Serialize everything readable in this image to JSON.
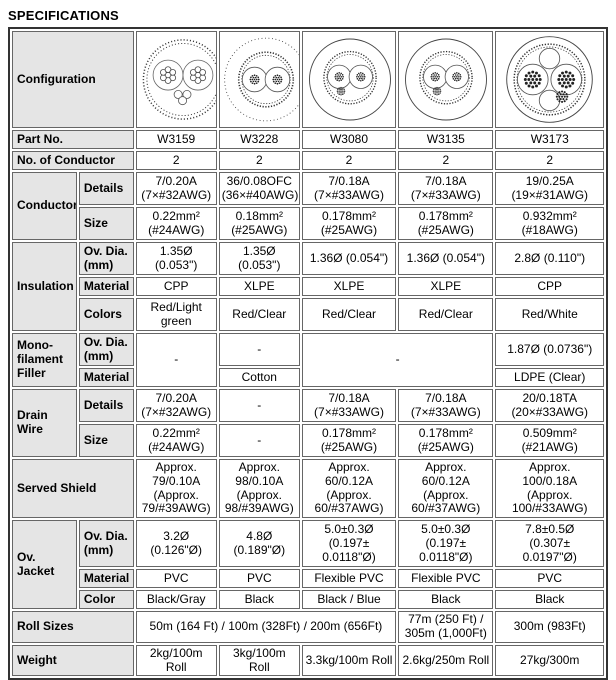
{
  "title": "SPECIFICATIONS",
  "parts": [
    "W3159",
    "W3228",
    "W3080",
    "W3135",
    "W3173"
  ],
  "labels": {
    "configuration": "Configuration",
    "part_no": "Part No.",
    "no_of_conductor": "No. of Conductor",
    "conductor": "Conductor",
    "insulation": "Insulation",
    "mono_filament_filler": "Mono-\nfilament\nFiller",
    "drain_wire": "Drain Wire",
    "served_shield": "Served Shield",
    "ov_jacket": "Ov. Jacket",
    "roll_sizes": "Roll Sizes",
    "weight": "Weight",
    "details": "Details",
    "size": "Size",
    "ov_dia_mm": "Ov. Dia.\n(mm)",
    "material": "Material",
    "colors": "Colors",
    "color": "Color"
  },
  "no_of_conductor": [
    "2",
    "2",
    "2",
    "2",
    "2"
  ],
  "conductor": {
    "details": [
      "7/0.20A\n(7×#32AWG)",
      "36/0.08OFC\n(36×#40AWG)",
      "7/0.18A\n(7×#33AWG)",
      "7/0.18A\n(7×#33AWG)",
      "19/0.25A\n(19×#31AWG)"
    ],
    "size": [
      "0.22mm²\n(#24AWG)",
      "0.18mm²\n(#25AWG)",
      "0.178mm²\n(#25AWG)",
      "0.178mm²\n(#25AWG)",
      "0.932mm²\n(#18AWG)"
    ]
  },
  "insulation": {
    "ov_dia": [
      "1.35Ø (0.053\")",
      "1.35Ø (0.053\")",
      "1.36Ø (0.054\")",
      "1.36Ø (0.054\")",
      "2.8Ø (0.110\")"
    ],
    "material": [
      "CPP",
      "XLPE",
      "XLPE",
      "XLPE",
      "CPP"
    ],
    "colors": [
      "Red/Light\ngreen",
      "Red/Clear",
      "Red/Clear",
      "Red/Clear",
      "Red/White"
    ]
  },
  "mono_filament_filler": {
    "w3159_merged": "-",
    "w3228_ov_dia": "-",
    "w3228_material": "Cotton",
    "w3080_w3135_merged": "-",
    "w3173_ov_dia": "1.87Ø (0.0736\")",
    "w3173_material": "LDPE (Clear)"
  },
  "drain_wire": {
    "details": [
      "7/0.20A\n(7×#32AWG)",
      "-",
      "7/0.18A\n(7×#33AWG)",
      "7/0.18A\n(7×#33AWG)",
      "20/0.18TA\n(20×#33AWG)"
    ],
    "size": [
      "0.22mm²\n(#24AWG)",
      "-",
      "0.178mm²\n(#25AWG)",
      "0.178mm²\n(#25AWG)",
      "0.509mm²\n(#21AWG)"
    ]
  },
  "served_shield": [
    "Approx.\n79/0.10A\n(Approx.\n79/#39AWG)",
    "Approx.\n98/0.10A\n(Approx.\n98/#39AWG)",
    "Approx. 60/0.12A\n(Approx.\n60/#37AWG)",
    "Approx. 60/0.12A\n(Approx.\n60/#37AWG)",
    "Approx.\n100/0.18A\n(Approx.\n100/#33AWG)"
  ],
  "ov_jacket": {
    "ov_dia": [
      "3.2Ø\n(0.126\"Ø)",
      "4.8Ø (0.189\"Ø)",
      "5.0±0.3Ø\n(0.197±\n0.0118\"Ø)",
      "5.0±0.3Ø\n(0.197±\n0.0118\"Ø)",
      "7.8±0.5Ø\n(0.307±\n0.0197\"Ø)"
    ],
    "material": [
      "PVC",
      "PVC",
      "Flexible PVC",
      "Flexible PVC",
      "PVC"
    ],
    "color": [
      "Black/Gray",
      "Black",
      "Black / Blue",
      "Black",
      "Black"
    ]
  },
  "roll_sizes": {
    "w3159_w3228_w3080": "50m (164 Ft) / 100m (328Ft) / 200m (656Ft)",
    "w3135": "77m (250 Ft) /\n305m (1,000Ft)",
    "w3173": "300m (983Ft)"
  },
  "weight": [
    "2kg/100m Roll",
    "3kg/100m Roll",
    "3.3kg/100m Roll",
    "2.6kg/250m Roll",
    "27kg/300m"
  ],
  "theme": {
    "label_bg": "#e5e5e5",
    "border": "#666666",
    "outer_border": "#333333",
    "text": "#000000"
  }
}
